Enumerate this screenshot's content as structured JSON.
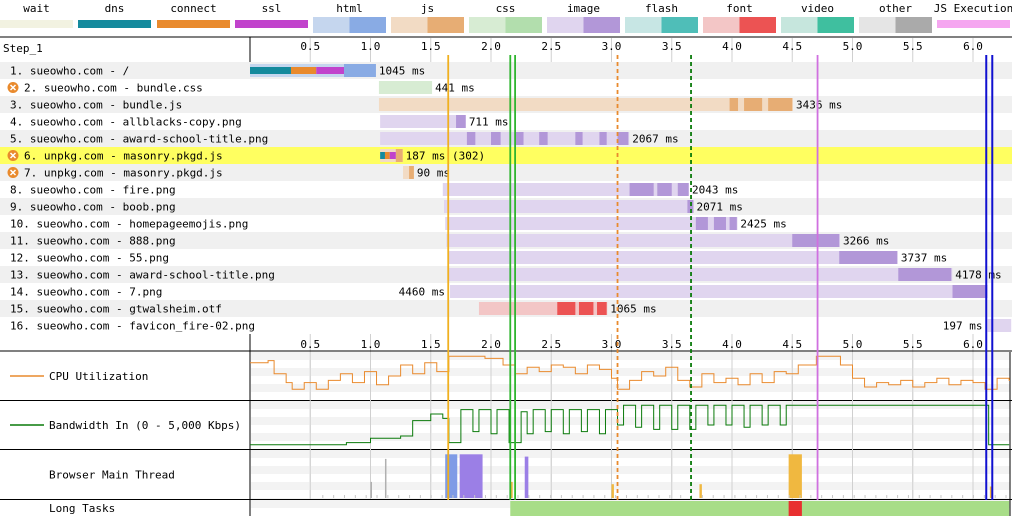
{
  "legend": [
    {
      "label": "wait",
      "light": "#f2f2e1",
      "dark": "#e2e2c6"
    },
    {
      "label": "dns",
      "light": "#148a9d",
      "dark": "#148a9d"
    },
    {
      "label": "connect",
      "light": "#e98a2d",
      "dark": "#e98a2d"
    },
    {
      "label": "ssl",
      "light": "#c143cc",
      "dark": "#c143cc"
    },
    {
      "label": "html",
      "light": "#c5d6ee",
      "dark": "#89abe4"
    },
    {
      "label": "js",
      "light": "#f2dbc4",
      "dark": "#e7ad74"
    },
    {
      "label": "css",
      "light": "#d7ecd3",
      "dark": "#b2dead"
    },
    {
      "label": "image",
      "light": "#e0d5ef",
      "dark": "#b297d8"
    },
    {
      "label": "flash",
      "light": "#c7e6e4",
      "dark": "#4fbeb8"
    },
    {
      "label": "font",
      "light": "#f3c6c6",
      "dark": "#ec5353"
    },
    {
      "label": "video",
      "light": "#c6e6dd",
      "dark": "#3fbf9f"
    },
    {
      "label": "other",
      "light": "#e5e5e5",
      "dark": "#aaaaaa"
    },
    {
      "label": "JS Execution",
      "light": "#f5a6f0",
      "dark": "#f5a6f0"
    }
  ],
  "step_label": "Step_1",
  "time_axis": {
    "ticks": [
      "0.5",
      "1.0",
      "1.5",
      "2.0",
      "2.5",
      "3.0",
      "3.5",
      "4.0",
      "4.5",
      "5.0",
      "5.5",
      "6.0"
    ],
    "tick_seconds": [
      0.5,
      1.0,
      1.5,
      2.0,
      2.5,
      3.0,
      3.5,
      4.0,
      4.5,
      5.0,
      5.5,
      6.0
    ]
  },
  "requests": [
    {
      "label": "1. sueowho.com - /",
      "timing": "1045 ms",
      "type": "html",
      "start": 0.0,
      "end": 1.045,
      "blocked": false,
      "highlight": false,
      "pre": [
        {
          "type": "dns",
          "s": 0.0,
          "e": 0.34
        },
        {
          "type": "connect",
          "s": 0.34,
          "e": 0.55
        },
        {
          "type": "ssl",
          "s": 0.55,
          "e": 0.78
        }
      ],
      "dark": [
        [
          0.78,
          1.045
        ]
      ]
    },
    {
      "label": "2. sueowho.com - bundle.css",
      "timing": "441 ms",
      "type": "css",
      "start": 1.07,
      "end": 1.511,
      "blocked": true,
      "highlight": false,
      "pre": [],
      "dark": []
    },
    {
      "label": "3. sueowho.com - bundle.js",
      "timing": "3436 ms",
      "type": "js",
      "start": 1.07,
      "end": 4.506,
      "blocked": false,
      "highlight": false,
      "pre": [],
      "dark": [
        [
          3.98,
          4.05
        ],
        [
          4.1,
          4.25
        ],
        [
          4.3,
          4.5
        ]
      ]
    },
    {
      "label": "4. sueowho.com - allblacks-copy.png",
      "timing": "711 ms",
      "type": "image",
      "start": 1.08,
      "end": 1.791,
      "blocked": false,
      "highlight": false,
      "pre": [],
      "dark": [
        [
          1.71,
          1.79
        ]
      ]
    },
    {
      "label": "5. sueowho.com - award-school-title.png",
      "timing": "2067 ms",
      "type": "image",
      "start": 1.08,
      "end": 3.147,
      "blocked": false,
      "highlight": false,
      "pre": [],
      "dark": [
        [
          1.8,
          1.87
        ],
        [
          2.0,
          2.08
        ],
        [
          2.2,
          2.27
        ],
        [
          2.4,
          2.47
        ],
        [
          2.7,
          2.76
        ],
        [
          2.9,
          2.96
        ],
        [
          3.05,
          3.14
        ]
      ]
    },
    {
      "label": "6. unpkg.com - masonry.pkgd.js",
      "timing": "187 ms (302)",
      "type": "js",
      "start": 1.08,
      "end": 1.267,
      "blocked": true,
      "highlight": true,
      "pre": [
        {
          "type": "dns",
          "s": 1.08,
          "e": 1.12
        },
        {
          "type": "connect",
          "s": 1.12,
          "e": 1.16
        },
        {
          "type": "ssl",
          "s": 1.16,
          "e": 1.21
        }
      ],
      "dark": [
        [
          1.21,
          1.267
        ]
      ]
    },
    {
      "label": "7. unpkg.com - masonry.pkgd.js",
      "timing": "90 ms",
      "type": "js",
      "start": 1.27,
      "end": 1.36,
      "blocked": true,
      "highlight": false,
      "pre": [],
      "dark": [
        [
          1.32,
          1.36
        ]
      ]
    },
    {
      "label": "8. sueowho.com - fire.png",
      "timing": "2043 ms",
      "type": "image",
      "start": 1.6,
      "end": 3.643,
      "blocked": false,
      "highlight": false,
      "pre": [],
      "dark": [
        [
          3.15,
          3.35
        ],
        [
          3.38,
          3.5
        ],
        [
          3.55,
          3.64
        ]
      ]
    },
    {
      "label": "9. sueowho.com - boob.png",
      "timing": "2071 ms",
      "type": "image",
      "start": 1.61,
      "end": 3.681,
      "blocked": false,
      "highlight": false,
      "pre": [],
      "dark": [
        [
          3.63,
          3.68
        ]
      ]
    },
    {
      "label": "10. sueowho.com - homepageemojis.png",
      "timing": "2425 ms",
      "type": "image",
      "start": 1.62,
      "end": 4.045,
      "blocked": false,
      "highlight": false,
      "pre": [],
      "dark": [
        [
          3.7,
          3.8
        ],
        [
          3.85,
          3.95
        ],
        [
          3.98,
          4.04
        ]
      ]
    },
    {
      "label": "11. sueowho.com - 888.png",
      "timing": "3266 ms",
      "type": "image",
      "start": 1.63,
      "end": 4.896,
      "blocked": false,
      "highlight": false,
      "pre": [],
      "dark": [
        [
          4.5,
          4.89
        ]
      ]
    },
    {
      "label": "12. sueowho.com - 55.png",
      "timing": "3737 ms",
      "type": "image",
      "start": 1.64,
      "end": 5.377,
      "blocked": false,
      "highlight": false,
      "pre": [],
      "dark": [
        [
          4.89,
          5.37
        ]
      ]
    },
    {
      "label": "13. sueowho.com - award-school-title.png",
      "timing": "4178 ms",
      "type": "image",
      "start": 1.65,
      "end": 5.828,
      "blocked": false,
      "highlight": false,
      "pre": [],
      "dark": [
        [
          5.38,
          5.82
        ]
      ]
    },
    {
      "label": "14. sueowho.com - 7.png",
      "timing": "4460 ms",
      "type": "image",
      "start": 1.66,
      "end": 6.12,
      "blocked": false,
      "highlight": false,
      "pre": [],
      "dark": [
        [
          5.83,
          6.12
        ]
      ],
      "timing_left": true
    },
    {
      "label": "15. sueowho.com - gtwalsheim.otf",
      "timing": "1065 ms",
      "type": "font",
      "start": 1.9,
      "end": 2.965,
      "blocked": false,
      "highlight": false,
      "pre": [],
      "dark": [
        [
          2.55,
          2.7
        ],
        [
          2.73,
          2.85
        ],
        [
          2.88,
          2.96
        ]
      ]
    },
    {
      "label": "16. sueowho.com - favicon_fire-02.png",
      "timing": "197 ms",
      "type": "image",
      "start": 6.12,
      "end": 6.317,
      "blocked": false,
      "highlight": false,
      "pre": [],
      "dark": [],
      "timing_left": true
    }
  ],
  "markers": [
    {
      "name": "start-render",
      "t": 1.645,
      "color": "#f0b020",
      "style": "solid"
    },
    {
      "name": "dom-interactive",
      "t": 2.16,
      "color": "#2fb52f",
      "style": "solid"
    },
    {
      "name": "dom-content-loaded",
      "t": 2.2,
      "color": "#2fb52f",
      "style": "solid"
    },
    {
      "name": "first-paint",
      "t": 3.05,
      "color": "#e98a2d",
      "style": "dashed"
    },
    {
      "name": "dom-complete",
      "t": 3.66,
      "color": "#0a7a0a",
      "style": "dashed"
    },
    {
      "name": "lcp",
      "t": 4.71,
      "color": "#d070e0",
      "style": "solid"
    },
    {
      "name": "onload",
      "t": 6.11,
      "color": "#1010d0",
      "style": "solid"
    },
    {
      "name": "visually-complete",
      "t": 6.16,
      "color": "#1010d0",
      "style": "solid"
    }
  ],
  "panels": {
    "cpu_label": "CPU Utilization",
    "bandwidth_label": "Bandwidth In (0 - 5,000 Kbps)",
    "main_thread_label": "Browser Main Thread",
    "long_tasks_label": "Long Tasks"
  },
  "cpu_series": [
    [
      0.0,
      0.8
    ],
    [
      0.15,
      0.85
    ],
    [
      0.2,
      0.55
    ],
    [
      0.3,
      0.35
    ],
    [
      0.35,
      0.2
    ],
    [
      0.45,
      0.35
    ],
    [
      0.55,
      0.2
    ],
    [
      0.65,
      0.4
    ],
    [
      0.75,
      0.55
    ],
    [
      0.85,
      0.35
    ],
    [
      0.95,
      0.6
    ],
    [
      1.05,
      0.3
    ],
    [
      1.15,
      0.5
    ],
    [
      1.25,
      0.75
    ],
    [
      1.35,
      0.55
    ],
    [
      1.45,
      0.8
    ],
    [
      1.55,
      0.6
    ],
    [
      1.65,
      0.95
    ],
    [
      1.8,
      0.95
    ],
    [
      1.95,
      0.9
    ],
    [
      2.1,
      0.75
    ],
    [
      2.2,
      0.55
    ],
    [
      2.3,
      0.7
    ],
    [
      2.4,
      0.6
    ],
    [
      2.5,
      0.75
    ],
    [
      2.6,
      0.7
    ],
    [
      2.7,
      0.55
    ],
    [
      2.8,
      0.75
    ],
    [
      2.9,
      0.65
    ],
    [
      3.0,
      0.45
    ],
    [
      3.05,
      0.2
    ],
    [
      3.15,
      0.4
    ],
    [
      3.25,
      0.6
    ],
    [
      3.35,
      0.5
    ],
    [
      3.45,
      0.7
    ],
    [
      3.55,
      0.4
    ],
    [
      3.65,
      0.25
    ],
    [
      3.75,
      0.55
    ],
    [
      3.85,
      0.35
    ],
    [
      3.95,
      0.45
    ],
    [
      4.05,
      0.3
    ],
    [
      4.15,
      0.55
    ],
    [
      4.25,
      0.35
    ],
    [
      4.35,
      0.6
    ],
    [
      4.45,
      0.55
    ],
    [
      4.55,
      0.75
    ],
    [
      4.7,
      0.95
    ],
    [
      4.9,
      0.75
    ],
    [
      5.0,
      0.45
    ],
    [
      5.1,
      0.25
    ],
    [
      5.2,
      0.35
    ],
    [
      5.3,
      0.3
    ],
    [
      5.4,
      0.4
    ],
    [
      5.5,
      0.25
    ],
    [
      5.6,
      0.35
    ],
    [
      5.7,
      0.45
    ],
    [
      5.8,
      0.3
    ],
    [
      5.9,
      0.4
    ],
    [
      6.0,
      0.35
    ],
    [
      6.1,
      0.2
    ],
    [
      6.2,
      0.45
    ],
    [
      6.3,
      0.4
    ]
  ],
  "bandwidth_series": [
    [
      0.0,
      0.05
    ],
    [
      0.8,
      0.1
    ],
    [
      1.0,
      0.2
    ],
    [
      1.25,
      0.25
    ],
    [
      1.35,
      0.6
    ],
    [
      1.45,
      0.6
    ],
    [
      1.5,
      0.75
    ],
    [
      1.6,
      0.65
    ],
    [
      1.65,
      0.1
    ],
    [
      1.75,
      0.85
    ],
    [
      1.85,
      0.35
    ],
    [
      1.9,
      0.85
    ],
    [
      2.0,
      0.3
    ],
    [
      2.05,
      0.85
    ],
    [
      2.15,
      0.1
    ],
    [
      2.25,
      0.8
    ],
    [
      2.3,
      0.3
    ],
    [
      2.35,
      0.85
    ],
    [
      2.45,
      0.35
    ],
    [
      2.5,
      0.85
    ],
    [
      2.6,
      0.3
    ],
    [
      2.65,
      0.85
    ],
    [
      2.75,
      0.35
    ],
    [
      2.8,
      0.85
    ],
    [
      2.9,
      0.3
    ],
    [
      2.95,
      0.85
    ],
    [
      3.05,
      0.5
    ],
    [
      3.1,
      0.95
    ],
    [
      3.2,
      0.45
    ],
    [
      3.25,
      0.95
    ],
    [
      3.35,
      0.4
    ],
    [
      3.4,
      0.95
    ],
    [
      3.5,
      0.4
    ],
    [
      3.55,
      0.95
    ],
    [
      3.65,
      0.4
    ],
    [
      3.7,
      0.95
    ],
    [
      3.8,
      0.5
    ],
    [
      3.85,
      0.95
    ],
    [
      3.95,
      0.5
    ],
    [
      4.0,
      0.95
    ],
    [
      4.1,
      0.45
    ],
    [
      4.15,
      0.95
    ],
    [
      4.25,
      0.5
    ],
    [
      4.3,
      0.95
    ],
    [
      4.4,
      0.5
    ],
    [
      4.45,
      0.95
    ],
    [
      5.5,
      0.95
    ],
    [
      6.1,
      0.95
    ],
    [
      6.13,
      0.05
    ],
    [
      6.3,
      0.05
    ]
  ],
  "main_thread_blocks": [
    {
      "s": 1.62,
      "e": 1.72,
      "h": 0.95,
      "color": "#7f9be6"
    },
    {
      "s": 1.74,
      "e": 1.93,
      "h": 0.95,
      "color": "#9b7fe6"
    },
    {
      "s": 2.28,
      "e": 2.31,
      "h": 0.9,
      "color": "#9b7fe6"
    },
    {
      "s": 1.12,
      "e": 1.13,
      "h": 0.85,
      "color": "#b0b0b0"
    },
    {
      "s": 1.0,
      "e": 1.01,
      "h": 0.35,
      "color": "#b0b0b0"
    },
    {
      "s": 4.47,
      "e": 4.58,
      "h": 0.95,
      "color": "#f0b840"
    },
    {
      "s": 3.0,
      "e": 3.02,
      "h": 0.3,
      "color": "#f0b840"
    },
    {
      "s": 3.73,
      "e": 3.75,
      "h": 0.3,
      "color": "#f0b840"
    },
    {
      "s": 2.16,
      "e": 2.18,
      "h": 0.35,
      "color": "#f0b840"
    },
    {
      "s": 6.14,
      "e": 6.16,
      "h": 0.25,
      "color": "#f0b840"
    }
  ],
  "long_tasks": [
    {
      "s": 2.16,
      "e": 6.3,
      "color": "#a8dd88"
    },
    {
      "s": 4.47,
      "e": 4.58,
      "color": "#e83030"
    }
  ]
}
